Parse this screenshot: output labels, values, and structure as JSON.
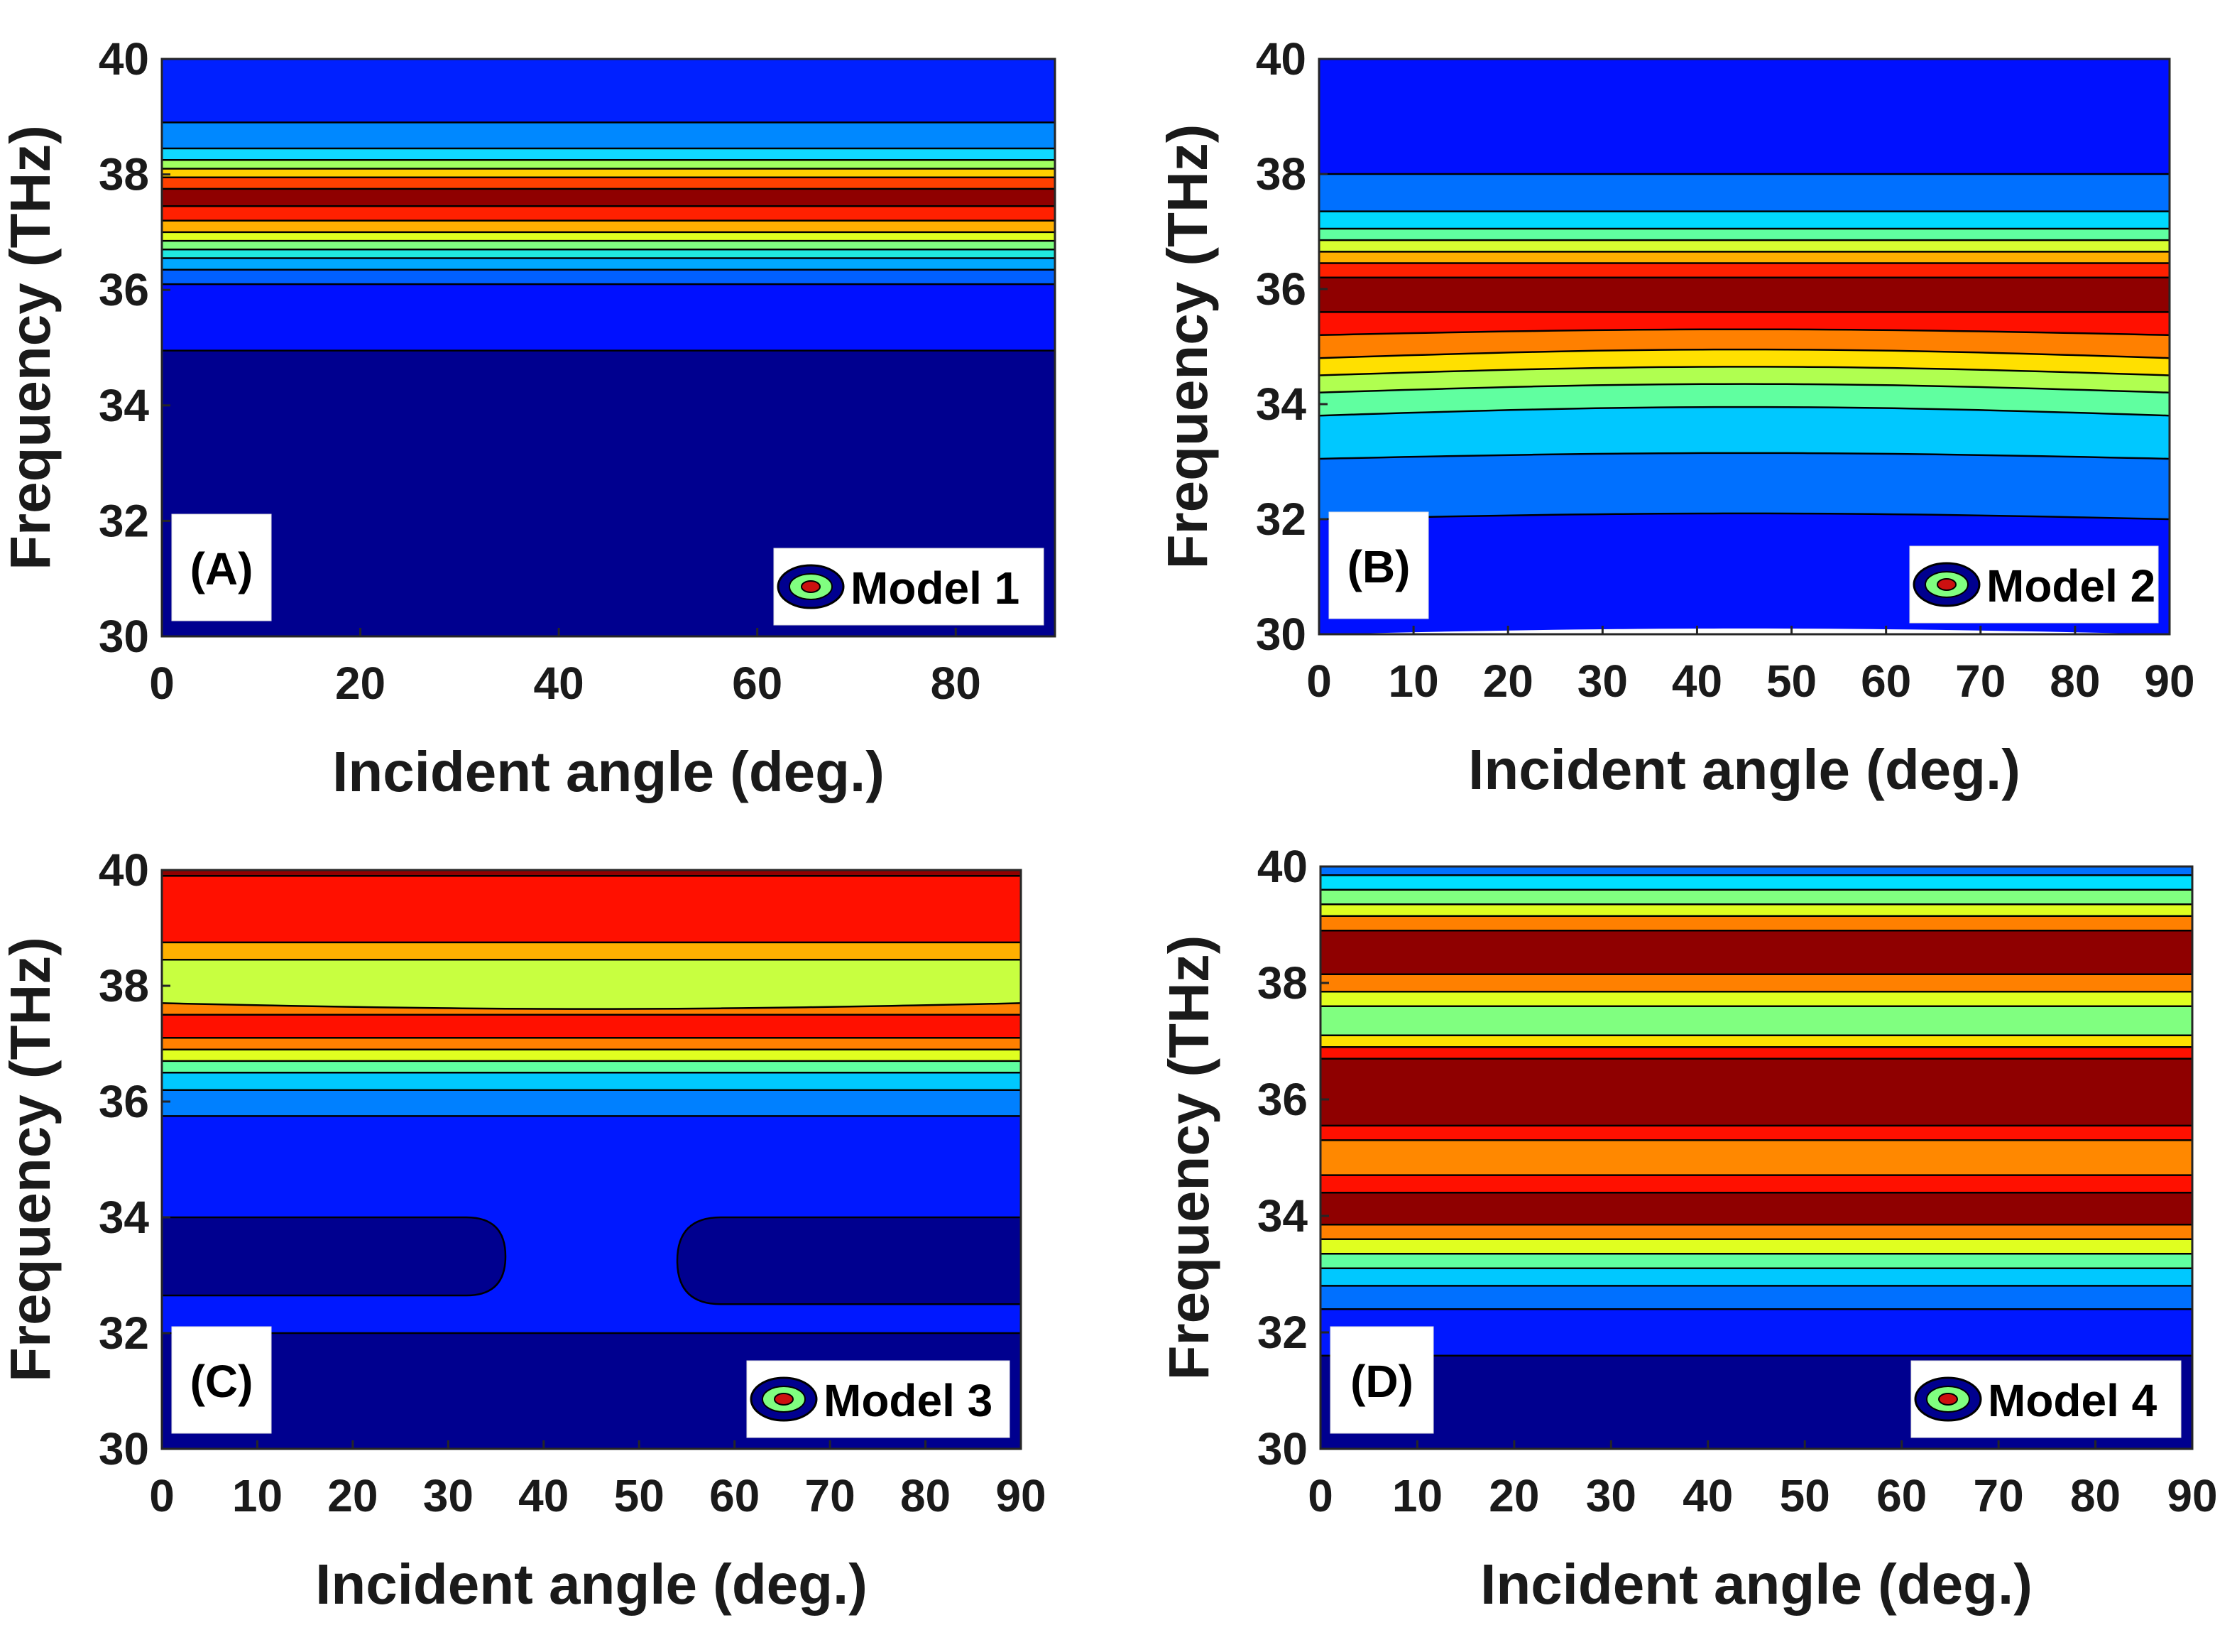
{
  "chart_data": [
    {
      "type": "contour",
      "panel_label": "(A)",
      "legend": "Model 1",
      "xlabel": "Incident angle (deg.)",
      "ylabel": "Frequency (THz)",
      "xlim": [
        0,
        90
      ],
      "ylim": [
        30,
        40
      ],
      "xticks": [
        "0",
        "20",
        "40",
        "60",
        "80"
      ],
      "yticks": [
        "30",
        "32",
        "34",
        "36",
        "38",
        "40"
      ],
      "bands": [
        {
          "from": 30.0,
          "to": 34.95,
          "color": "#00008f",
          "bulge": 0
        },
        {
          "from": 34.95,
          "to": 36.1,
          "color": "#0010ff",
          "bulge": 0
        },
        {
          "from": 36.1,
          "to": 36.35,
          "color": "#0060ff",
          "bulge": 0
        },
        {
          "from": 36.35,
          "to": 36.55,
          "color": "#00a8ff",
          "bulge": 0
        },
        {
          "from": 36.55,
          "to": 36.7,
          "color": "#20e8e0",
          "bulge": 0
        },
        {
          "from": 36.7,
          "to": 36.85,
          "color": "#80ff80",
          "bulge": 0
        },
        {
          "from": 36.85,
          "to": 37.0,
          "color": "#e0ff20",
          "bulge": 0
        },
        {
          "from": 37.0,
          "to": 37.2,
          "color": "#ffb000",
          "bulge": 0
        },
        {
          "from": 37.2,
          "to": 37.45,
          "color": "#ff2000",
          "bulge": 0
        },
        {
          "from": 37.45,
          "to": 37.75,
          "color": "#8f0000",
          "bulge": 0
        },
        {
          "from": 37.75,
          "to": 37.95,
          "color": "#ff4000",
          "bulge": 0
        },
        {
          "from": 37.95,
          "to": 38.1,
          "color": "#ffd000",
          "bulge": 0
        },
        {
          "from": 38.1,
          "to": 38.25,
          "color": "#a0ff60",
          "bulge": 0
        },
        {
          "from": 38.25,
          "to": 38.45,
          "color": "#10d8ff",
          "bulge": 0
        },
        {
          "from": 38.45,
          "to": 38.9,
          "color": "#0088ff",
          "bulge": 0
        },
        {
          "from": 38.9,
          "to": 40.0,
          "color": "#0020ff",
          "bulge": 0
        }
      ]
    },
    {
      "type": "contour",
      "panel_label": "(B)",
      "legend": "Model 2",
      "xlabel": "Incident angle (deg.)",
      "ylabel": "Frequency (THz)",
      "xlim": [
        0,
        90
      ],
      "ylim": [
        30,
        40
      ],
      "xticks": [
        "0",
        "10",
        "20",
        "30",
        "40",
        "50",
        "60",
        "70",
        "80",
        "90"
      ],
      "yticks": [
        "30",
        "32",
        "34",
        "36",
        "38",
        "40"
      ],
      "bands": [
        {
          "from": 30.0,
          "to": 32.0,
          "color": "#0010ff",
          "bulge": 0.1
        },
        {
          "from": 32.0,
          "to": 33.05,
          "color": "#0070ff",
          "bulge": 0.1
        },
        {
          "from": 33.05,
          "to": 33.8,
          "color": "#00c8ff",
          "bulge": 0.1
        },
        {
          "from": 33.8,
          "to": 34.2,
          "color": "#60ffa0",
          "bulge": 0.15
        },
        {
          "from": 34.2,
          "to": 34.5,
          "color": "#b0ff50",
          "bulge": 0.15
        },
        {
          "from": 34.5,
          "to": 34.8,
          "color": "#ffe000",
          "bulge": 0.15
        },
        {
          "from": 34.8,
          "to": 35.2,
          "color": "#ff8000",
          "bulge": 0.15
        },
        {
          "from": 35.2,
          "to": 35.6,
          "color": "#ff1000",
          "bulge": 0.1
        },
        {
          "from": 35.6,
          "to": 36.2,
          "color": "#8f0000",
          "bulge": 0
        },
        {
          "from": 36.2,
          "to": 36.45,
          "color": "#ff2000",
          "bulge": 0
        },
        {
          "from": 36.45,
          "to": 36.65,
          "color": "#ffb000",
          "bulge": 0
        },
        {
          "from": 36.65,
          "to": 36.85,
          "color": "#d8ff30",
          "bulge": 0
        },
        {
          "from": 36.85,
          "to": 37.05,
          "color": "#60ffa0",
          "bulge": 0
        },
        {
          "from": 37.05,
          "to": 37.35,
          "color": "#00d8ff",
          "bulge": 0
        },
        {
          "from": 37.35,
          "to": 38.0,
          "color": "#0070ff",
          "bulge": 0
        },
        {
          "from": 38.0,
          "to": 40.0,
          "color": "#0010ff",
          "bulge": 0
        }
      ]
    },
    {
      "type": "contour",
      "panel_label": "(C)",
      "legend": "Model 3",
      "xlabel": "Incident angle (deg.)",
      "ylabel": "Frequency (THz)",
      "xlim": [
        0,
        90
      ],
      "ylim": [
        30,
        40
      ],
      "xticks": [
        "0",
        "10",
        "20",
        "30",
        "40",
        "50",
        "60",
        "70",
        "80",
        "90"
      ],
      "yticks": [
        "30",
        "32",
        "34",
        "36",
        "38",
        "40"
      ],
      "bands": [
        {
          "from": 30.0,
          "to": 32.0,
          "color": "#00008f",
          "bulge": 0
        },
        {
          "from": 32.0,
          "to": 35.75,
          "color": "#0018ff",
          "bulge": 0
        },
        {
          "from": 35.75,
          "to": 36.2,
          "color": "#0080ff",
          "bulge": 0
        },
        {
          "from": 36.2,
          "to": 36.5,
          "color": "#00c8ff",
          "bulge": 0
        },
        {
          "from": 36.5,
          "to": 36.7,
          "color": "#60ffa0",
          "bulge": 0
        },
        {
          "from": 36.7,
          "to": 36.9,
          "color": "#e0ff20",
          "bulge": 0
        },
        {
          "from": 36.9,
          "to": 37.1,
          "color": "#ff8000",
          "bulge": 0
        },
        {
          "from": 37.1,
          "to": 37.5,
          "color": "#ff1000",
          "bulge": 0
        },
        {
          "from": 37.5,
          "to": 37.7,
          "color": "#ff8000",
          "bulge": 0
        },
        {
          "from": 37.7,
          "to": 38.45,
          "color": "#c8ff40",
          "bulge": -0.1
        },
        {
          "from": 38.45,
          "to": 38.75,
          "color": "#ffb000",
          "bulge": 0
        },
        {
          "from": 38.75,
          "to": 39.9,
          "color": "#ff1000",
          "bulge": 0
        },
        {
          "from": 39.9,
          "to": 40.0,
          "color": "#8f0000",
          "bulge": 0
        }
      ],
      "islands": [
        {
          "x_from": 0,
          "x_to": 36,
          "y_from": 32.65,
          "y_to": 34.0,
          "color": "#00008f",
          "round": "right"
        },
        {
          "x_from": 54,
          "x_to": 90,
          "y_from": 32.5,
          "y_to": 34.0,
          "color": "#00008f",
          "round": "left"
        }
      ]
    },
    {
      "type": "contour",
      "panel_label": "(D)",
      "legend": "Model 4",
      "xlabel": "Incident angle (deg.)",
      "ylabel": "Frequency (THz)",
      "xlim": [
        0,
        90
      ],
      "ylim": [
        30,
        40
      ],
      "xticks": [
        "0",
        "10",
        "20",
        "30",
        "40",
        "50",
        "60",
        "70",
        "80",
        "90"
      ],
      "yticks": [
        "30",
        "32",
        "34",
        "36",
        "38",
        "40"
      ],
      "bands": [
        {
          "from": 30.0,
          "to": 31.6,
          "color": "#00008f",
          "bulge": 0
        },
        {
          "from": 31.6,
          "to": 32.4,
          "color": "#0018ff",
          "bulge": 0
        },
        {
          "from": 32.4,
          "to": 32.8,
          "color": "#0070ff",
          "bulge": 0
        },
        {
          "from": 32.8,
          "to": 33.1,
          "color": "#00c8ff",
          "bulge": 0
        },
        {
          "from": 33.1,
          "to": 33.35,
          "color": "#60ffa0",
          "bulge": 0
        },
        {
          "from": 33.35,
          "to": 33.6,
          "color": "#e0ff20",
          "bulge": 0
        },
        {
          "from": 33.6,
          "to": 33.85,
          "color": "#ff8000",
          "bulge": 0
        },
        {
          "from": 33.85,
          "to": 34.4,
          "color": "#8f0000",
          "bulge": 0
        },
        {
          "from": 34.4,
          "to": 34.7,
          "color": "#ff1000",
          "bulge": 0
        },
        {
          "from": 34.7,
          "to": 35.3,
          "color": "#ff8800",
          "bulge": 0
        },
        {
          "from": 35.3,
          "to": 35.55,
          "color": "#ff1000",
          "bulge": 0
        },
        {
          "from": 35.55,
          "to": 36.7,
          "color": "#8f0000",
          "bulge": 0
        },
        {
          "from": 36.7,
          "to": 36.9,
          "color": "#ff1000",
          "bulge": 0
        },
        {
          "from": 36.9,
          "to": 37.1,
          "color": "#ffe000",
          "bulge": 0
        },
        {
          "from": 37.1,
          "to": 37.6,
          "color": "#80ff80",
          "bulge": 0
        },
        {
          "from": 37.6,
          "to": 37.85,
          "color": "#e0ff20",
          "bulge": 0
        },
        {
          "from": 37.85,
          "to": 38.15,
          "color": "#ff8000",
          "bulge": 0
        },
        {
          "from": 38.15,
          "to": 38.9,
          "color": "#8f0000",
          "bulge": 0
        },
        {
          "from": 38.9,
          "to": 39.15,
          "color": "#ff8000",
          "bulge": 0
        },
        {
          "from": 39.15,
          "to": 39.35,
          "color": "#e0ff20",
          "bulge": 0
        },
        {
          "from": 39.35,
          "to": 39.6,
          "color": "#80ff80",
          "bulge": 0
        },
        {
          "from": 39.6,
          "to": 39.85,
          "color": "#00e0ff",
          "bulge": 0
        },
        {
          "from": 39.85,
          "to": 40.0,
          "color": "#0070ff",
          "bulge": 0
        }
      ]
    }
  ]
}
